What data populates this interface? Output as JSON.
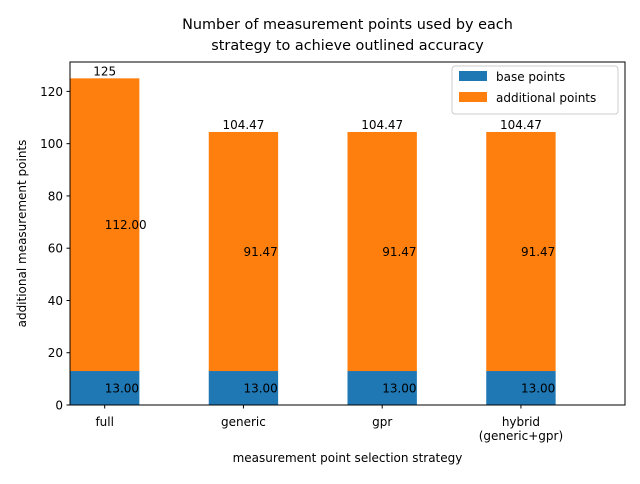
{
  "chart_data": {
    "type": "bar",
    "stacked": true,
    "title_lines": [
      "Number of measurement points used by each",
      "strategy to achieve outlined accuracy"
    ],
    "xlabel": "measurement point selection strategy",
    "ylabel": "additional measurement points",
    "categories": [
      [
        "full"
      ],
      [
        "generic"
      ],
      [
        "gpr"
      ],
      [
        "hybrid",
        "(generic+gpr)"
      ]
    ],
    "ylim": [
      0,
      131.25
    ],
    "yticks": [
      0,
      20,
      40,
      60,
      80,
      100,
      120
    ],
    "grid": false,
    "legend_position": "top-right",
    "series": [
      {
        "name": "base points",
        "color": "#1f77b4",
        "values": [
          13,
          13,
          13,
          13
        ],
        "labels": [
          "13.00",
          "13.00",
          "13.00",
          "13.00"
        ]
      },
      {
        "name": "additional points",
        "color": "#ff7f0e",
        "values": [
          112,
          91.47,
          91.47,
          91.47
        ],
        "labels": [
          "112.00",
          "91.47",
          "91.47",
          "91.47"
        ]
      }
    ],
    "totals": [
      125,
      104.47,
      104.47,
      104.47
    ],
    "total_labels": [
      "125",
      "104.47",
      "104.47",
      "104.47"
    ]
  }
}
